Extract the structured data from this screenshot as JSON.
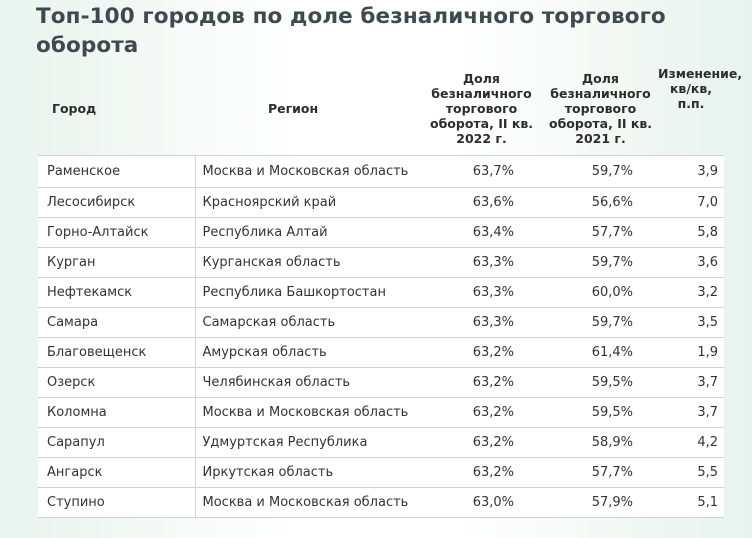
{
  "title": "Топ-100 городов по доле безналичного торгового оборота",
  "table": {
    "headers": {
      "city": "Город",
      "region": "Регион",
      "share_2022": "Доля безналичного торгового оборота, II кв. 2022 г.",
      "share_2021": "Доля безналичного торгового оборота, II кв. 2021 г.",
      "change": "Изменение, кв/кв, п.п."
    },
    "rows": [
      {
        "city": "Раменское",
        "region": "Москва и Московская область",
        "share_2022": "63,7%",
        "share_2021": "59,7%",
        "change": "3,9"
      },
      {
        "city": "Лесосибирск",
        "region": "Красноярский край",
        "share_2022": "63,6%",
        "share_2021": "56,6%",
        "change": "7,0"
      },
      {
        "city": "Горно-Алтайск",
        "region": "Республика Алтай",
        "share_2022": "63,4%",
        "share_2021": "57,7%",
        "change": "5,8"
      },
      {
        "city": "Курган",
        "region": "Курганская область",
        "share_2022": "63,3%",
        "share_2021": "59,7%",
        "change": "3,6"
      },
      {
        "city": "Нефтекамск",
        "region": "Республика Башкортостан",
        "share_2022": "63,3%",
        "share_2021": "60,0%",
        "change": "3,2"
      },
      {
        "city": "Самара",
        "region": "Самарская область",
        "share_2022": "63,3%",
        "share_2021": "59,7%",
        "change": "3,5"
      },
      {
        "city": "Благовещенск",
        "region": "Амурская область",
        "share_2022": "63,2%",
        "share_2021": "61,4%",
        "change": "1,9"
      },
      {
        "city": "Озерск",
        "region": "Челябинская область",
        "share_2022": "63,2%",
        "share_2021": "59,5%",
        "change": "3,7"
      },
      {
        "city": "Коломна",
        "region": "Москва и Московская область",
        "share_2022": "63,2%",
        "share_2021": "59,5%",
        "change": "3,7"
      },
      {
        "city": "Сарапул",
        "region": "Удмуртская Республика",
        "share_2022": "63,2%",
        "share_2021": "58,9%",
        "change": "4,2"
      },
      {
        "city": "Ангарск",
        "region": "Иркутская область",
        "share_2022": "63,2%",
        "share_2021": "57,7%",
        "change": "5,5"
      },
      {
        "city": "Ступино",
        "region": "Москва и Московская область",
        "share_2022": "63,0%",
        "share_2021": "57,9%",
        "change": "5,1"
      }
    ]
  }
}
